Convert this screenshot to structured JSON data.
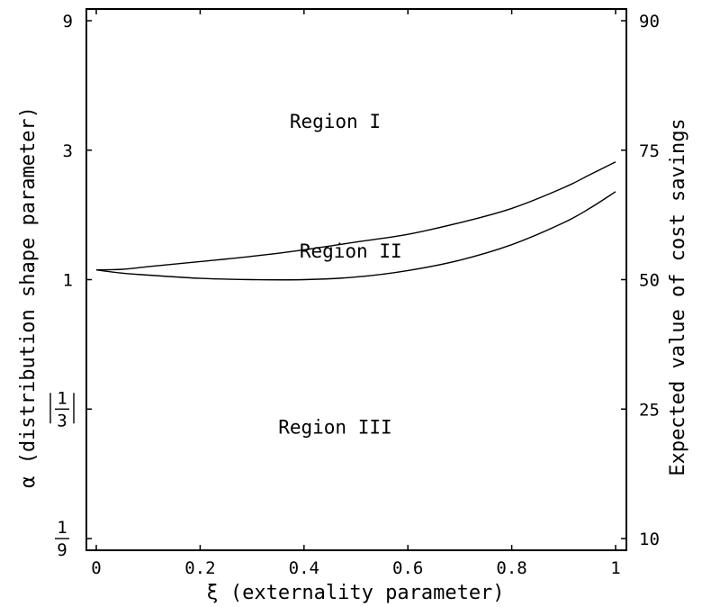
{
  "chart_data": {
    "type": "line",
    "xlabel": "ξ (externality parameter)",
    "ylabel_left": "α (distribution shape parameter)",
    "ylabel_right": "Expected value of cost savings",
    "x_ticks": [
      "0",
      "0.2",
      "0.4",
      "0.6",
      "0.8",
      "1"
    ],
    "y_ticks_left": [
      {
        "label": "9",
        "log3_value": 2
      },
      {
        "label": "3",
        "log3_value": 1
      },
      {
        "label": "1",
        "log3_value": 0
      },
      {
        "label": "1/3",
        "num": "1",
        "den": "3",
        "log3_value": -1
      },
      {
        "label": "1/9",
        "num": "1",
        "den": "9",
        "log3_value": -2
      }
    ],
    "y_ticks_right": [
      "90",
      "75",
      "50",
      "25",
      "10"
    ],
    "xlim": [
      0,
      1
    ],
    "ylim_log3": [
      -2,
      2
    ],
    "y_scale": "log",
    "grid": false,
    "series": [
      {
        "x": [
          0,
          0.05,
          0.1,
          0.2,
          0.3,
          0.4,
          0.5,
          0.6,
          0.7,
          0.8,
          0.9,
          0.95,
          1
        ],
        "y_log3": [
          0.075,
          0.08,
          0.1,
          0.14,
          0.18,
          0.23,
          0.29,
          0.35,
          0.44,
          0.55,
          0.71,
          0.81,
          0.91
        ]
      },
      {
        "x": [
          0,
          0.05,
          0.1,
          0.2,
          0.3,
          0.4,
          0.5,
          0.6,
          0.7,
          0.8,
          0.9,
          0.95,
          1
        ],
        "y_log3": [
          0.075,
          0.05,
          0.035,
          0.01,
          0.0,
          0.0,
          0.02,
          0.07,
          0.15,
          0.27,
          0.44,
          0.55,
          0.68
        ]
      }
    ],
    "annotations": [
      {
        "text": "Region I",
        "x": 0.46,
        "y_log3": 1.22
      },
      {
        "text": "Region II",
        "x": 0.49,
        "y_log3": 0.22
      },
      {
        "text": "Region III",
        "x": 0.46,
        "y_log3": -1.14
      }
    ]
  }
}
